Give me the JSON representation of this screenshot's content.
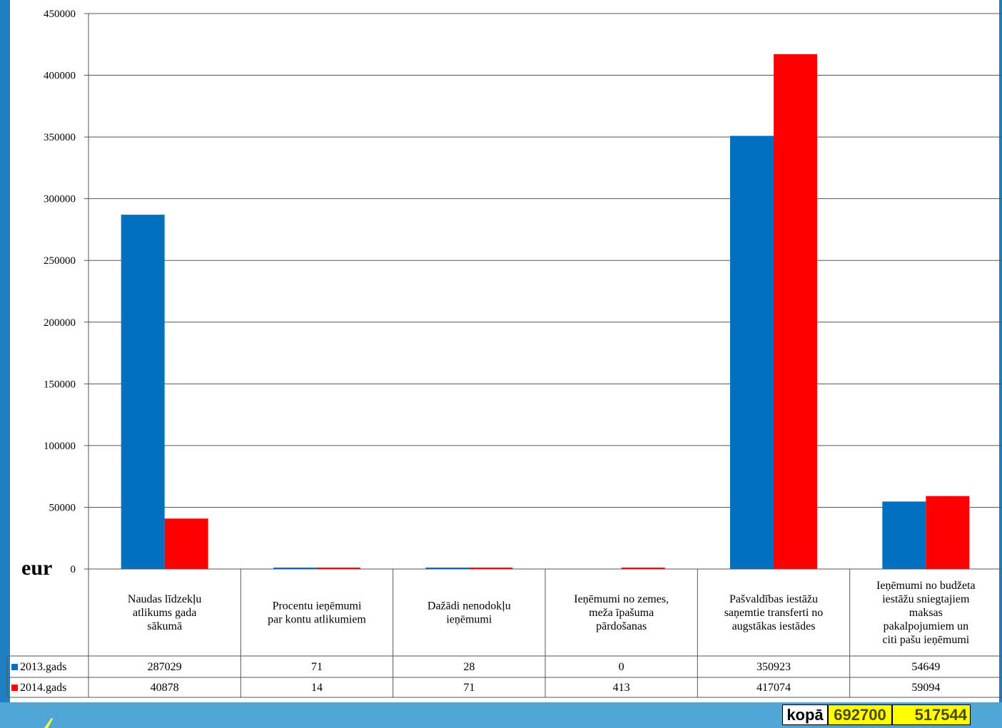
{
  "unit_label": "eur",
  "colors": {
    "series_2013": "#0070c0",
    "series_2014": "#ff0000",
    "grid": "#000000",
    "background_accent": "#1e7fc2",
    "bottom_bar": "#4fa6d6",
    "total_highlight": "#ffff00"
  },
  "totals": {
    "label": "kopā",
    "value_2013": "692700",
    "value_2014": "517544"
  },
  "chart_data": {
    "type": "bar",
    "title": "",
    "xlabel": "",
    "ylabel": "eur",
    "ylim": [
      0,
      450000
    ],
    "yticks": [
      0,
      50000,
      100000,
      150000,
      200000,
      250000,
      300000,
      350000,
      400000,
      450000
    ],
    "ytick_labels": [
      "0",
      "50000",
      "100000",
      "150000",
      "200000",
      "250000",
      "300000",
      "350000",
      "400000",
      "450000"
    ],
    "grid": true,
    "legend_placement": "data-table",
    "categories": [
      [
        "Naudas līdzekļu",
        "atlikums gada",
        "sākumā"
      ],
      [
        "Procentu ieņēmumi",
        "par kontu atlikumiem"
      ],
      [
        "Dažādi nenodokļu",
        "ieņēmumi"
      ],
      [
        "Ieņēmumi no zemes,",
        "meža īpašuma",
        "pārdošanas"
      ],
      [
        "Pašvaldības iestāžu",
        "saņemtie transferti no",
        "augstākas iestādes"
      ],
      [
        "Ieņēmumi no budžeta",
        "iestāžu sniegtajiem",
        "maksas",
        "pakalpojumiem un",
        "citi pašu ieņēmumi"
      ]
    ],
    "series": [
      {
        "name": "2013.gads",
        "color": "#0070c0",
        "values": [
          287029,
          71,
          28,
          0,
          350923,
          54649
        ]
      },
      {
        "name": "2014.gads",
        "color": "#ff0000",
        "values": [
          40878,
          14,
          71,
          413,
          417074,
          59094
        ]
      }
    ]
  }
}
